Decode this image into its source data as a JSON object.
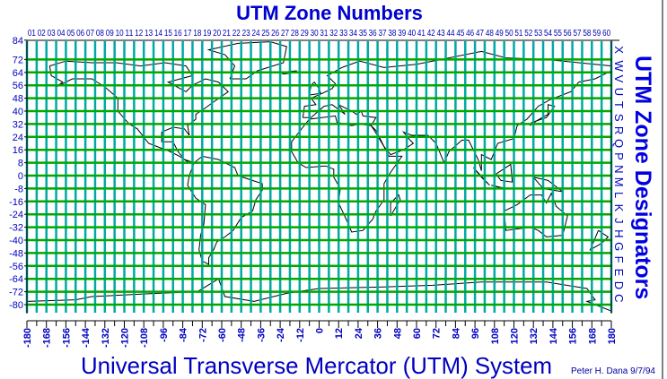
{
  "titles": {
    "top": "UTM Zone Numbers",
    "right": "UTM Zone Designators",
    "bottom": "Universal Transverse Mercator (UTM) System",
    "credit": "Peter H. Dana 9/7/94"
  },
  "zone_numbers": [
    "01",
    "02",
    "03",
    "04",
    "05",
    "06",
    "07",
    "08",
    "09",
    "10",
    "11",
    "12",
    "13",
    "14",
    "15",
    "16",
    "17",
    "18",
    "19",
    "20",
    "21",
    "22",
    "23",
    "24",
    "25",
    "26",
    "27",
    "28",
    "29",
    "30",
    "31",
    "32",
    "33",
    "34",
    "35",
    "36",
    "37",
    "38",
    "39",
    "40",
    "41",
    "42",
    "43",
    "44",
    "45",
    "46",
    "47",
    "48",
    "49",
    "50",
    "51",
    "52",
    "53",
    "54",
    "55",
    "56",
    "57",
    "58",
    "59",
    "60"
  ],
  "zone_designators": [
    "C",
    "D",
    "E",
    "F",
    "G",
    "H",
    "J",
    "K",
    "L",
    "M",
    "N",
    "P",
    "Q",
    "R",
    "S",
    "T",
    "U",
    "V",
    "W",
    "X"
  ],
  "latitude_labels": [
    "84",
    "72",
    "64",
    "56",
    "48",
    "40",
    "32",
    "24",
    "16",
    "8",
    "0",
    "-8",
    "-16",
    "-24",
    "-32",
    "-40",
    "-48",
    "-56",
    "-64",
    "-72",
    "-80"
  ],
  "longitude_labels": [
    "-180",
    "-168",
    "-156",
    "-144",
    "-132",
    "-120",
    "-108",
    "-96",
    "-84",
    "-72",
    "-60",
    "-48",
    "-36",
    "-24",
    "-12",
    "0",
    "12",
    "24",
    "36",
    "48",
    "60",
    "72",
    "84",
    "96",
    "108",
    "120",
    "132",
    "144",
    "156",
    "168",
    "180"
  ],
  "colors": {
    "zone_lines": "#00a8a8",
    "latitude_bands": "#00a800",
    "text": "#0000c0",
    "coastline": "#000000"
  }
}
